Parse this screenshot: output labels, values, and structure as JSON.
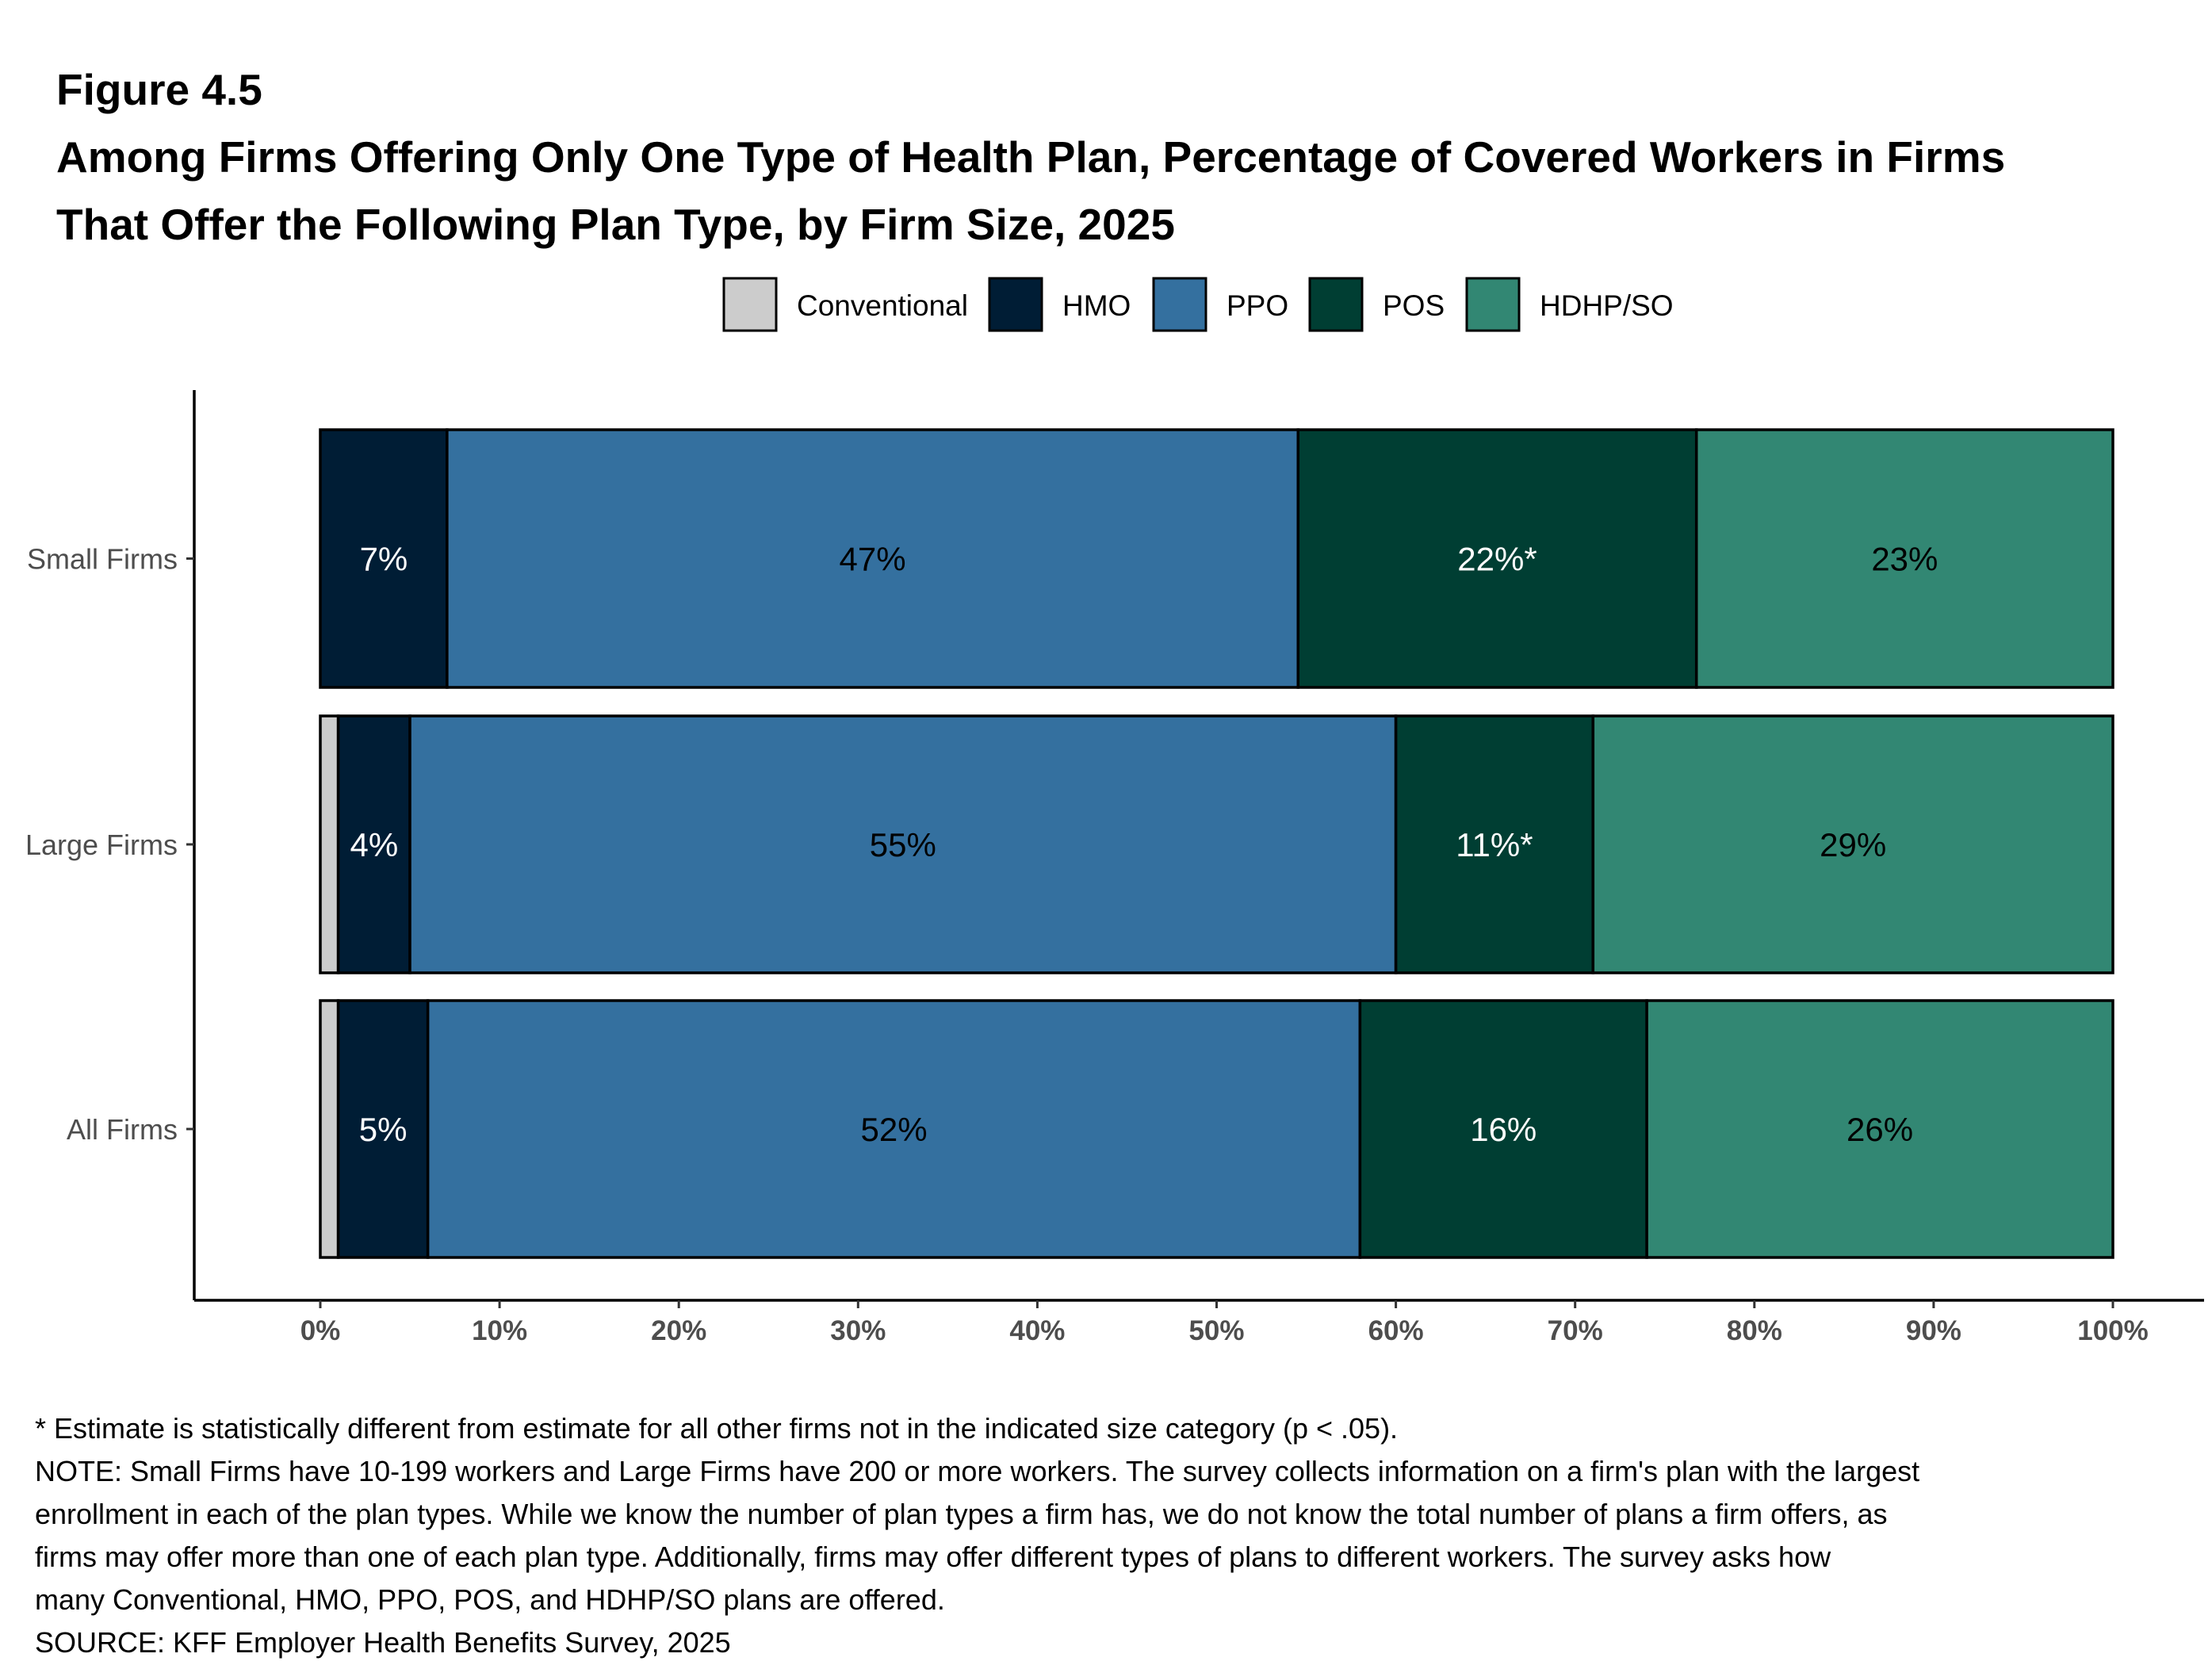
{
  "figure_label": "Figure 4.5",
  "title_line1": "Among Firms Offering Only One Type of Health Plan, Percentage of Covered Workers in Firms",
  "title_line2": "That Offer the Following Plan Type, by Firm Size, 2025",
  "chart_data": {
    "type": "bar",
    "orientation": "horizontal",
    "stacked": true,
    "categories": [
      "Small Firms",
      "Large Firms",
      "All Firms"
    ],
    "series": [
      {
        "name": "Conventional",
        "color": "#cccccc",
        "values": [
          0,
          1,
          1
        ],
        "labels": [
          "",
          "",
          ""
        ]
      },
      {
        "name": "HMO",
        "color": "#001d35",
        "values": [
          7,
          4,
          5
        ],
        "labels": [
          "7%",
          "4%",
          "5%"
        ]
      },
      {
        "name": "PPO",
        "color": "#34709f",
        "values": [
          47,
          55,
          52
        ],
        "labels": [
          "47%",
          "55%",
          "52%"
        ]
      },
      {
        "name": "POS",
        "color": "#003e33",
        "values": [
          22,
          11,
          16
        ],
        "labels": [
          "22%*",
          "11%*",
          "16%"
        ]
      },
      {
        "name": "HDHP/SO",
        "color": "#328773",
        "values": [
          23,
          29,
          26
        ],
        "labels": [
          "23%",
          "29%",
          "26%"
        ]
      }
    ],
    "xlim": [
      0,
      100
    ],
    "xticks": [
      "0%",
      "10%",
      "20%",
      "30%",
      "40%",
      "50%",
      "60%",
      "70%",
      "80%",
      "90%",
      "100%"
    ],
    "legend_position": "top",
    "grid": false
  },
  "footnotes": [
    "* Estimate is statistically different from estimate for all other firms not in the indicated size category (p < .05).",
    "NOTE: Small Firms have 10-199 workers and Large Firms have 200 or more workers. The survey collects information on a firm's plan with the largest",
    "enrollment in each of the plan types. While we know the number of plan types a firm has, we do not know the total number of plans a firm offers, as",
    "firms may offer more than one of each plan type. Additionally, firms may offer different types of plans to different workers. The survey asks how",
    "many Conventional, HMO, PPO, POS, and HDHP/SO plans are offered.",
    "SOURCE: KFF Employer Health Benefits Survey, 2025"
  ]
}
